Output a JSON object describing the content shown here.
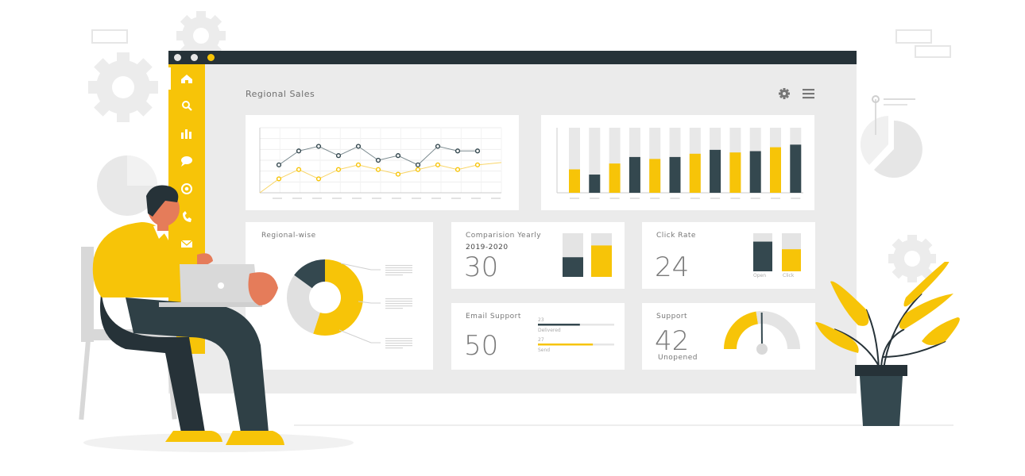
{
  "colors": {
    "accent": "#F7C408",
    "dark": "#34484F",
    "window_bg": "#EBEBEB",
    "card_bg": "#FFFFFF",
    "top_bar": "#263238"
  },
  "window": {
    "title": "Regional Sales",
    "toolbar_icons": [
      "gear-icon",
      "menu-icon"
    ]
  },
  "sidebar": {
    "items": [
      {
        "icon": "home-icon"
      },
      {
        "icon": "search-icon"
      },
      {
        "icon": "bar-chart-icon"
      },
      {
        "icon": "chat-icon"
      },
      {
        "icon": "at-icon"
      },
      {
        "icon": "phone-icon"
      },
      {
        "icon": "mail-icon"
      }
    ]
  },
  "cards": {
    "regional_wise": {
      "title": "Regional-wise"
    },
    "comparison": {
      "title": "Comparision Yearly",
      "period": "2019-2020",
      "value": "30",
      "bars": [
        0.45,
        0.72
      ]
    },
    "click_rate": {
      "title": "Click Rate",
      "value": "24",
      "open_label": "Open",
      "click_label": "Click",
      "bars": [
        0.78,
        0.58
      ]
    },
    "email_support": {
      "title": "Email Support",
      "value": "50",
      "delivered_count": "23",
      "delivered_label": "Delivered",
      "delivered_fill": 0.55,
      "send_count": "27",
      "send_label": "Send",
      "send_fill": 0.72
    },
    "support": {
      "title": "Support",
      "value": "42",
      "sublabel": "Unopened",
      "gauge_level": 0.45
    }
  },
  "chart_data": [
    {
      "type": "line",
      "series": [
        {
          "values": [
            6,
            9,
            10,
            8,
            10,
            7,
            8,
            6,
            10,
            9,
            9
          ]
        },
        {
          "values": [
            3,
            5,
            3,
            5,
            6,
            5,
            4,
            5,
            6,
            5,
            6
          ]
        }
      ],
      "ylim": [
        0,
        14
      ],
      "grid": true
    },
    {
      "type": "bar",
      "series": [
        {
          "values": [
            0.36,
            0.28,
            0.45,
            0.55,
            0.52,
            0.55,
            0.6,
            0.66,
            0.62,
            0.64,
            0.7,
            0.74
          ]
        },
        {
          "values": [
            1,
            1,
            1,
            1,
            1,
            1,
            1,
            1,
            1,
            1,
            1,
            1
          ]
        }
      ],
      "ylim": [
        0,
        1
      ]
    },
    {
      "type": "pie",
      "values": [
        55,
        30,
        15
      ],
      "colors": [
        "#F7C408",
        "#E0E0E0",
        "#34484F"
      ]
    }
  ]
}
